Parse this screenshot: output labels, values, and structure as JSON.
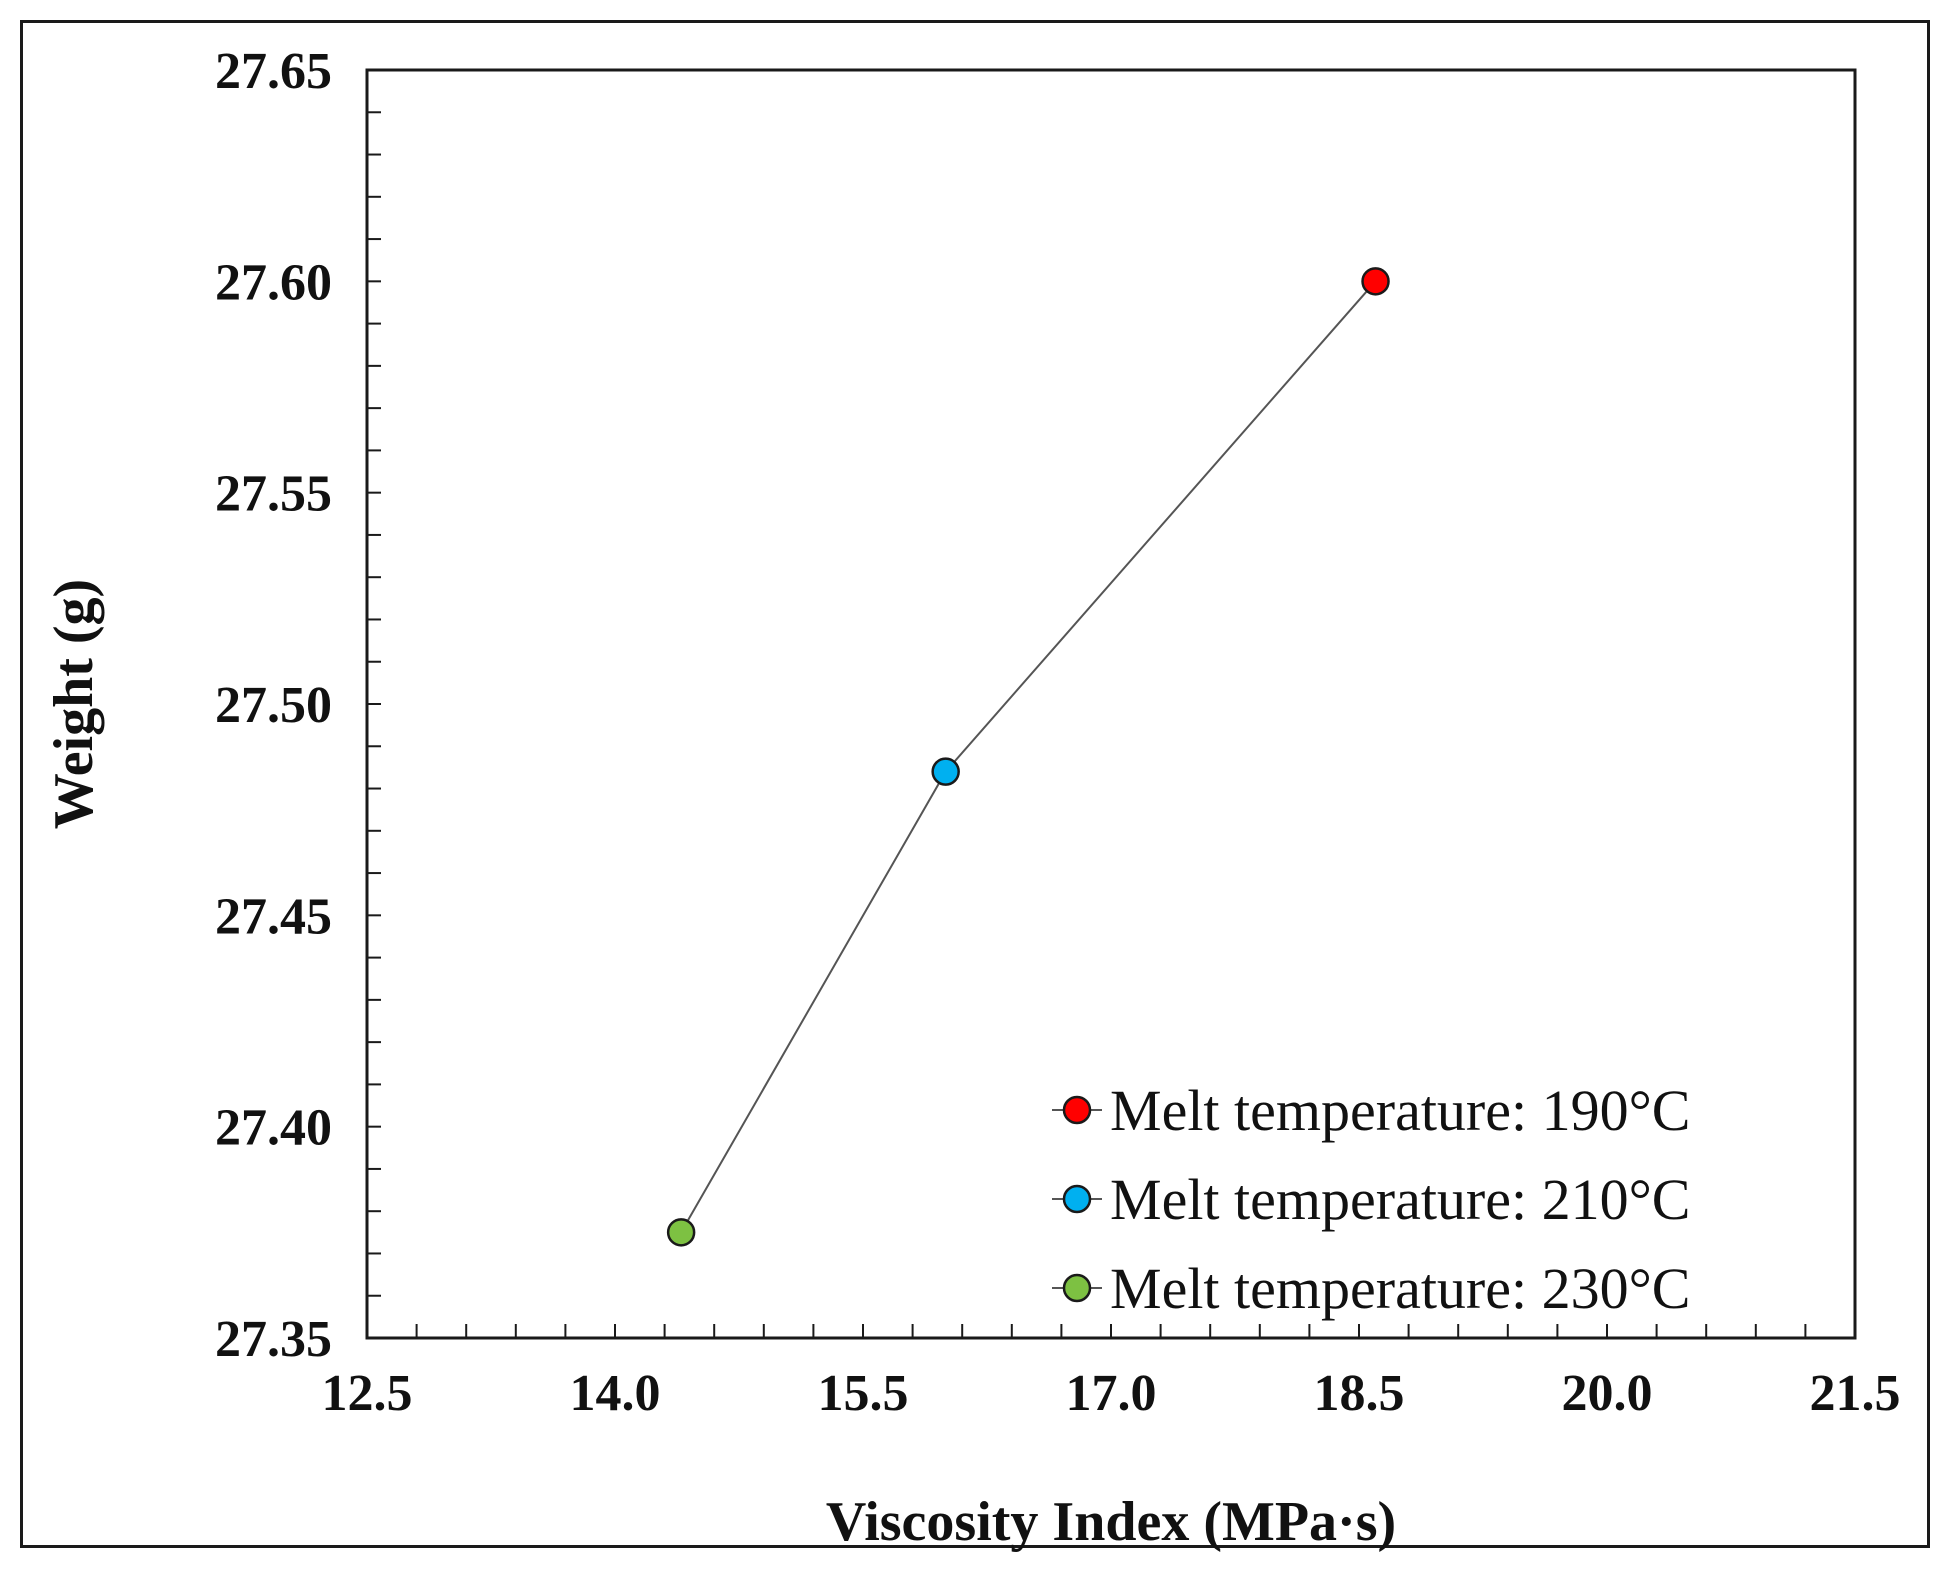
{
  "chart_data": {
    "type": "line",
    "title": "",
    "xlabel": "Viscosity Index (MPa·s)",
    "ylabel": "Weight (g)",
    "xlim": [
      12.5,
      21.5
    ],
    "ylim": [
      27.35,
      27.65
    ],
    "x_ticks": [
      "12.5",
      "14.0",
      "15.5",
      "17.0",
      "18.5",
      "20.0",
      "21.5"
    ],
    "y_ticks": [
      "27.35",
      "27.40",
      "27.45",
      "27.50",
      "27.55",
      "27.60",
      "27.65"
    ],
    "x_minor_step": 0.3,
    "y_minor_step": 0.01,
    "line_color": "#555555",
    "legend_position": "bottom-right",
    "series": [
      {
        "name": "Melt temperature: 190°C",
        "x": 18.6,
        "y": 27.6,
        "color": "#ff0000"
      },
      {
        "name": "Melt temperature: 210°C",
        "x": 16.0,
        "y": 27.484,
        "color": "#00b0f0"
      },
      {
        "name": "Melt temperature: 230°C",
        "x": 14.4,
        "y": 27.375,
        "color": "#7dc142"
      }
    ]
  }
}
